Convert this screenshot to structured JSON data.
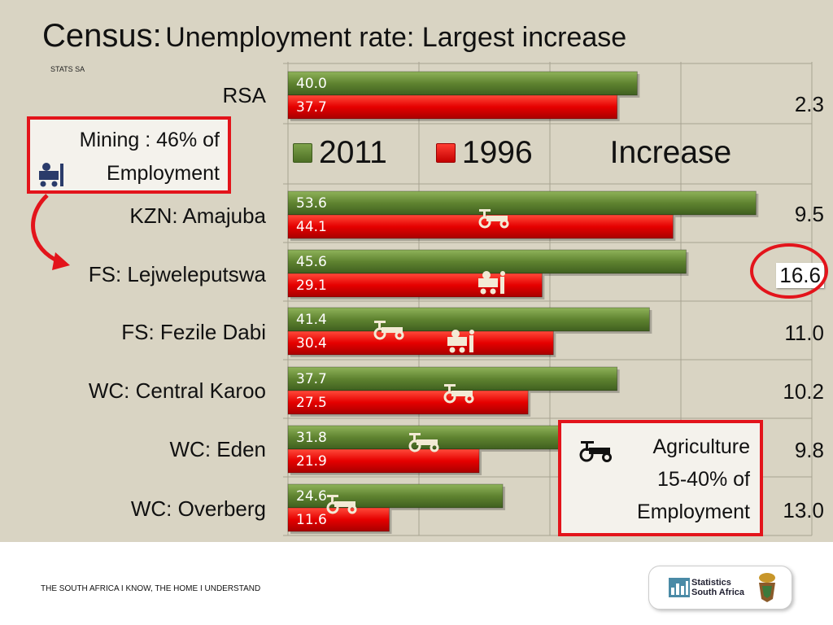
{
  "title": {
    "main": "Census:",
    "sub": "Unemployment rate: Largest increase"
  },
  "source": "STATS SA",
  "legend": {
    "s2011": "2011",
    "s1996": "1996",
    "increase": "Increase"
  },
  "chart_data": {
    "type": "bar",
    "orientation": "horizontal",
    "categories": [
      "RSA",
      "KZN: Amajuba",
      "FS: Lejweleputswa",
      "FS: Fezile Dabi",
      "WC: Central Karoo",
      "WC: Eden",
      "WC: Overberg"
    ],
    "series": [
      {
        "name": "2011",
        "values": [
          "40.0",
          "53.6",
          "45.6",
          "41.4",
          "37.7",
          "31.8",
          "24.6"
        ]
      },
      {
        "name": "1996",
        "values": [
          "37.7",
          "44.1",
          "29.1",
          "30.4",
          "27.5",
          "21.9",
          "11.6"
        ]
      }
    ],
    "increase": [
      "2.3",
      "9.5",
      "16.6",
      "11.0",
      "10.2",
      "9.8",
      "13.0"
    ],
    "highlighted": "FS: Lejweleputswa",
    "xlim": [
      0,
      60
    ],
    "colors": {
      "s2011": "#5f8330",
      "s1996": "#e50000"
    },
    "grid": true,
    "legend_position": "inside-chart"
  },
  "callouts": {
    "mining": {
      "line1": "Mining : 46% of",
      "line2": "Employment"
    },
    "agriculture": {
      "line1": "Agriculture",
      "line2": "15-40% of",
      "line3": "Employment"
    }
  },
  "footer": {
    "tagline": "THE SOUTH AFRICA I KNOW, THE HOME I UNDERSTAND",
    "logo_line1": "Statistics",
    "logo_line2": "South Africa"
  }
}
